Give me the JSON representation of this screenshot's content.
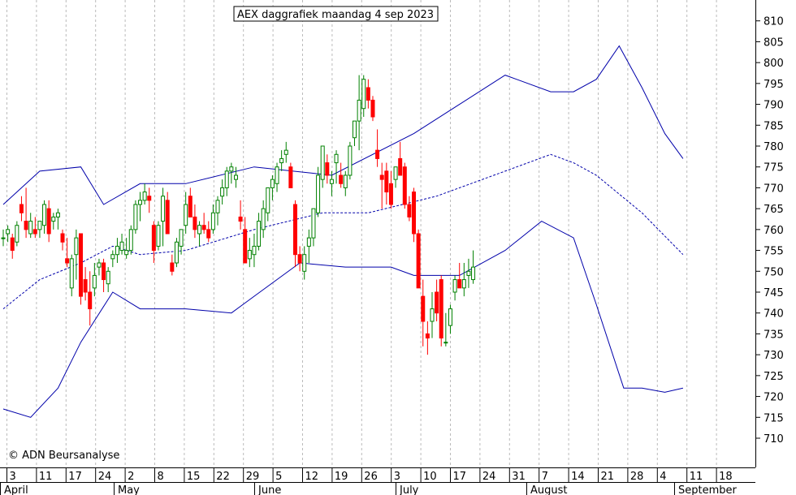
{
  "chart_data": {
    "type": "candlestick",
    "title": "AEX daggrafiek maandag 4 sep 2023",
    "copyright": "© ADN Beursanalyse",
    "ylim": [
      703,
      815
    ],
    "y_ticks": [
      710,
      715,
      720,
      725,
      730,
      735,
      740,
      745,
      750,
      755,
      760,
      765,
      770,
      775,
      780,
      785,
      790,
      795,
      800,
      805,
      810
    ],
    "x_day_labels": [
      "3",
      "11",
      "17",
      "24",
      "2",
      "8",
      "15",
      "22",
      "29",
      "5",
      "12",
      "19",
      "26",
      "3",
      "10",
      "17",
      "24",
      "31",
      "7",
      "14",
      "21",
      "28",
      "4",
      "11",
      "18"
    ],
    "x_month_labels": [
      "April",
      "May",
      "June",
      "July",
      "August",
      "September"
    ],
    "colors": {
      "up": "#008000",
      "down": "#ff0000",
      "band": "#0000aa",
      "grid": "#bbbbbb"
    },
    "series": [
      {
        "name": "candles",
        "ohlc": [
          [
            758,
            760,
            756,
            758
          ],
          [
            759,
            761,
            757,
            760
          ],
          [
            758,
            759,
            753,
            755
          ],
          [
            757,
            762,
            756,
            761
          ],
          [
            766,
            768,
            762,
            764
          ],
          [
            762,
            770,
            758,
            760
          ],
          [
            759,
            764,
            758,
            762
          ],
          [
            760,
            763,
            758,
            759
          ],
          [
            760,
            762,
            758,
            762
          ],
          [
            761,
            767,
            759,
            766
          ],
          [
            765,
            767,
            757,
            759
          ],
          [
            762,
            764,
            760,
            763
          ],
          [
            763,
            765,
            760,
            764
          ],
          [
            759,
            760,
            755,
            757
          ],
          [
            753,
            758,
            751,
            752
          ],
          [
            746,
            754,
            744,
            753
          ],
          [
            754,
            760,
            748,
            758
          ],
          [
            759,
            759,
            742,
            744
          ],
          [
            748,
            751,
            743,
            745
          ],
          [
            745,
            750,
            737,
            741
          ],
          [
            746,
            752,
            744,
            749
          ],
          [
            751,
            753,
            749,
            752
          ],
          [
            752,
            753,
            745,
            748
          ],
          [
            747,
            751,
            745,
            750
          ],
          [
            753,
            755,
            751,
            754
          ],
          [
            754,
            758,
            752,
            756
          ],
          [
            755,
            759,
            754,
            757
          ],
          [
            754,
            758,
            753,
            755
          ],
          [
            755,
            761,
            754,
            760
          ],
          [
            760,
            767,
            759,
            766
          ],
          [
            766,
            769,
            762,
            767
          ],
          [
            767,
            771,
            766,
            769
          ],
          [
            768,
            770,
            764,
            767
          ],
          [
            761,
            762,
            752,
            755
          ],
          [
            756,
            762,
            755,
            761
          ],
          [
            762,
            770,
            756,
            768
          ],
          [
            767,
            769,
            759,
            759
          ],
          [
            752,
            754,
            749,
            750
          ],
          [
            752,
            758,
            751,
            757
          ],
          [
            756,
            760,
            754,
            760
          ],
          [
            761,
            769,
            759,
            766
          ],
          [
            768,
            770,
            763,
            763
          ],
          [
            763,
            766,
            758,
            760
          ],
          [
            759,
            762,
            756,
            761
          ],
          [
            761,
            764,
            759,
            760
          ],
          [
            760,
            762,
            757,
            758
          ],
          [
            760,
            766,
            759,
            764
          ],
          [
            764,
            768,
            761,
            767
          ],
          [
            768,
            772,
            766,
            770
          ],
          [
            770,
            775,
            768,
            774
          ],
          [
            774,
            776,
            771,
            775
          ],
          [
            772,
            775,
            770,
            773
          ],
          [
            763,
            767,
            760,
            762
          ],
          [
            760,
            763,
            752,
            752
          ],
          [
            753,
            758,
            751,
            755
          ],
          [
            754,
            759,
            751,
            756
          ],
          [
            756,
            764,
            755,
            762
          ],
          [
            760,
            767,
            758,
            765
          ],
          [
            764,
            770,
            762,
            770
          ],
          [
            770,
            773,
            767,
            772
          ],
          [
            771,
            776,
            769,
            775
          ],
          [
            776,
            779,
            774,
            777
          ],
          [
            778,
            781,
            776,
            779
          ],
          [
            775,
            776,
            770,
            770
          ],
          [
            766,
            767,
            751,
            754
          ],
          [
            754,
            756,
            750,
            752
          ],
          [
            750,
            756,
            748,
            754
          ],
          [
            756,
            760,
            752,
            758
          ],
          [
            758,
            765,
            756,
            765
          ],
          [
            764,
            775,
            763,
            773
          ],
          [
            772,
            780,
            770,
            780
          ],
          [
            776,
            778,
            771,
            773
          ],
          [
            771,
            774,
            768,
            772
          ],
          [
            776,
            779,
            771,
            778
          ],
          [
            773,
            776,
            770,
            771
          ],
          [
            770,
            774,
            768,
            773
          ],
          [
            773,
            781,
            772,
            780
          ],
          [
            782,
            786,
            780,
            786
          ],
          [
            786,
            797,
            779,
            791
          ],
          [
            789,
            797,
            787,
            796
          ],
          [
            794,
            796,
            789,
            791
          ],
          [
            791,
            792,
            786,
            787
          ],
          [
            779,
            784,
            775,
            777
          ],
          [
            773,
            776,
            765,
            772
          ],
          [
            774,
            776,
            766,
            769
          ],
          [
            771,
            774,
            765,
            766
          ],
          [
            772,
            775,
            770,
            775
          ],
          [
            777,
            781,
            773,
            773
          ],
          [
            775,
            776,
            765,
            766
          ],
          [
            766,
            768,
            762,
            763
          ],
          [
            769,
            770,
            757,
            759
          ],
          [
            759,
            760,
            746,
            746
          ],
          [
            744,
            748,
            732,
            738
          ],
          [
            735,
            738,
            730,
            734
          ],
          [
            738,
            745,
            734,
            741
          ],
          [
            745,
            748,
            738,
            740
          ],
          [
            748,
            749,
            732,
            734
          ],
          [
            733,
            740,
            732,
            733
          ],
          [
            737,
            742,
            735,
            741
          ],
          [
            745,
            749,
            743,
            748
          ],
          [
            748,
            752,
            746,
            746
          ],
          [
            746,
            752,
            744,
            748
          ],
          [
            749,
            753,
            746,
            750
          ],
          [
            748,
            755,
            747,
            751
          ]
        ]
      },
      {
        "name": "upper-band",
        "x": [
          0,
          8,
          17,
          22,
          30,
          40,
          55,
          72,
          90,
          100,
          110,
          120,
          125,
          130,
          135,
          140,
          145,
          149
        ],
        "y": [
          766,
          774,
          775,
          766,
          771,
          771,
          775,
          773,
          783,
          790,
          797,
          793,
          793,
          796,
          804,
          794,
          783,
          777
        ]
      },
      {
        "name": "middle-band",
        "x": [
          0,
          8,
          17,
          24,
          30,
          40,
          55,
          70,
          80,
          95,
          110,
          120,
          125,
          130,
          140,
          149
        ],
        "y": [
          741,
          748,
          752,
          756,
          754,
          755,
          760,
          764,
          764,
          768,
          774,
          778,
          776,
          773,
          764,
          754
        ]
      },
      {
        "name": "lower-band",
        "x": [
          0,
          6,
          12,
          17,
          24,
          30,
          40,
          50,
          55,
          65,
          75,
          85,
          90,
          100,
          110,
          118,
          125,
          130,
          136,
          140,
          145,
          149
        ],
        "y": [
          717,
          715,
          722,
          733,
          745,
          741,
          741,
          740,
          744,
          752,
          751,
          751,
          749,
          749,
          755,
          762,
          758,
          742,
          722,
          722,
          721,
          722
        ]
      }
    ]
  }
}
